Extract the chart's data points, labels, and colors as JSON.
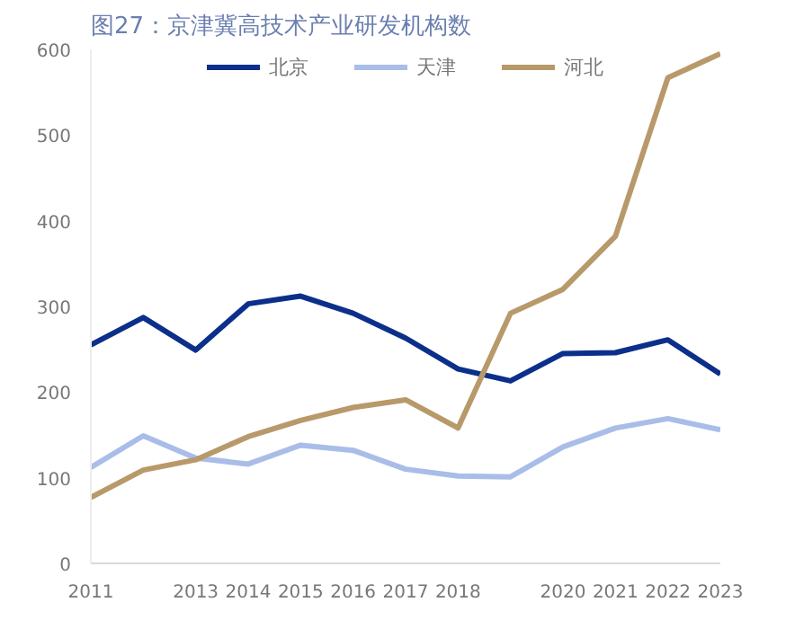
{
  "chart_data": {
    "type": "line",
    "title": "图27：京津冀高技术产业研发机构数",
    "x": [
      2011,
      2012,
      2013,
      2014,
      2015,
      2016,
      2017,
      2018,
      2019,
      2020,
      2021,
      2022,
      2023
    ],
    "xlim": [
      2011,
      2023
    ],
    "xticks": [
      2011,
      2013,
      2014,
      2015,
      2016,
      2017,
      2018,
      2020,
      2021,
      2022,
      2023
    ],
    "ylim": [
      0,
      600
    ],
    "yticks": [
      0,
      100,
      200,
      300,
      400,
      500,
      600
    ],
    "grid": false,
    "legend": "top",
    "marker": "none",
    "line_style": "solid",
    "series": [
      {
        "name": "北京",
        "color": "#0b2f8a",
        "values": [
          255,
          287,
          249,
          303,
          312,
          292,
          263,
          227,
          213,
          245,
          246,
          261,
          221
        ]
      },
      {
        "name": "天津",
        "color": "#a9bde8",
        "values": [
          112,
          149,
          123,
          116,
          138,
          132,
          110,
          102,
          101,
          136,
          158,
          169,
          156
        ]
      },
      {
        "name": "河北",
        "color": "#b8996a",
        "values": [
          77,
          109,
          121,
          148,
          167,
          182,
          191,
          158,
          292,
          320,
          382,
          567,
          595
        ]
      }
    ]
  }
}
